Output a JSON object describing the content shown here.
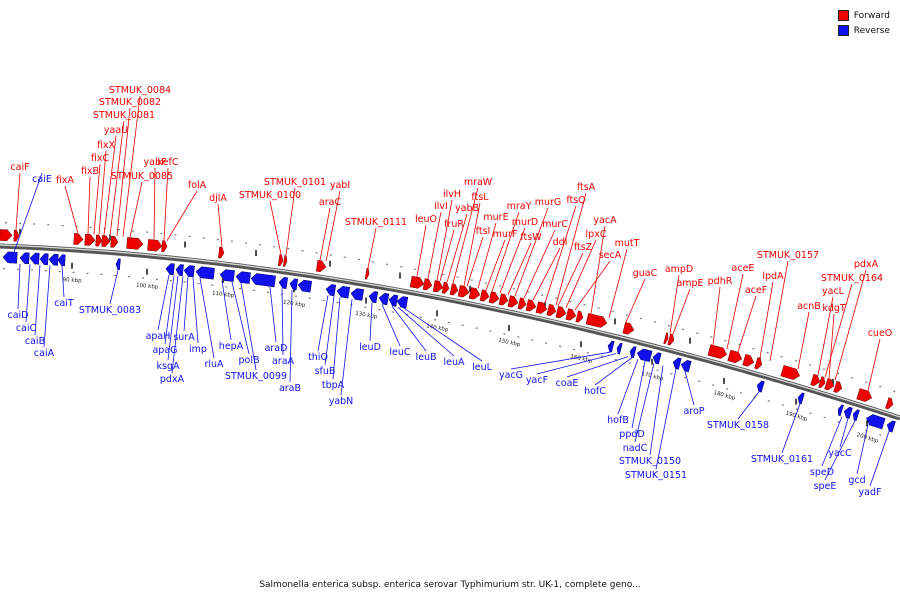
{
  "legend": {
    "forward_label": "Forward",
    "reverse_label": "Reverse",
    "forward_color": "#ee0000",
    "reverse_color": "#1111ee"
  },
  "caption": "Salmonella enterica subsp. enterica serovar Typhimurium str. UK-1, complete geno...",
  "scale_labels": [
    "90 kbp",
    "100 kbp",
    "110 kbp",
    "120 kbp",
    "130 kbp",
    "140 kbp",
    "150 kbp",
    "160 kbp",
    "170 kbp",
    "180 kbp",
    "190 kbp",
    "200 kbp"
  ],
  "forward_genes": [
    "caiF",
    "fixA",
    "fixB",
    "fixC",
    "fixX",
    "yaaU",
    "STMUK_0081",
    "STMUK_0082",
    "STMUK_0084",
    "STMUK_0085",
    "yabF",
    "kefC",
    "folA",
    "djlA",
    "STMUK_0100",
    "STMUK_0101",
    "araC",
    "yabI",
    "STMUK_0111",
    "leuO",
    "ilvI",
    "ilvH",
    "fruR",
    "yabB",
    "mraW",
    "ftsL",
    "ftsI",
    "murE",
    "murF",
    "mraY",
    "murD",
    "ftsW",
    "murG",
    "murC",
    "ddl",
    "ftsQ",
    "ftsA",
    "ftsZ",
    "lpxC",
    "secA",
    "yacA",
    "mutT",
    "guaC",
    "ampD",
    "ampE",
    "pdhR",
    "aceE",
    "aceF",
    "lpdA",
    "STMUK_0157",
    "acnB",
    "yacL",
    "STMUK_0164",
    "kdgT",
    "pdxA",
    "cueO"
  ],
  "reverse_genes": [
    "caiE",
    "caiD",
    "caiC",
    "caiB",
    "caiA",
    "caiT",
    "STMUK_0083",
    "apaH",
    "apaG",
    "ksgA",
    "pdxA",
    "surA",
    "imp",
    "rluA",
    "hepA",
    "polB",
    "STMUK_0099",
    "araD",
    "araA",
    "araB",
    "thiQ",
    "sfuB",
    "tbpA",
    "yabN",
    "leuD",
    "leuC",
    "leuB",
    "leuA",
    "leuL",
    "yacG",
    "yacF",
    "coaE",
    "hofC",
    "hofB",
    "ppdD",
    "nadC",
    "STMUK_0150",
    "STMUK_0151",
    "aroP",
    "STMUK_0158",
    "STMUK_0161",
    "yacC",
    "speD",
    "speE",
    "gcd",
    "yadF"
  ]
}
